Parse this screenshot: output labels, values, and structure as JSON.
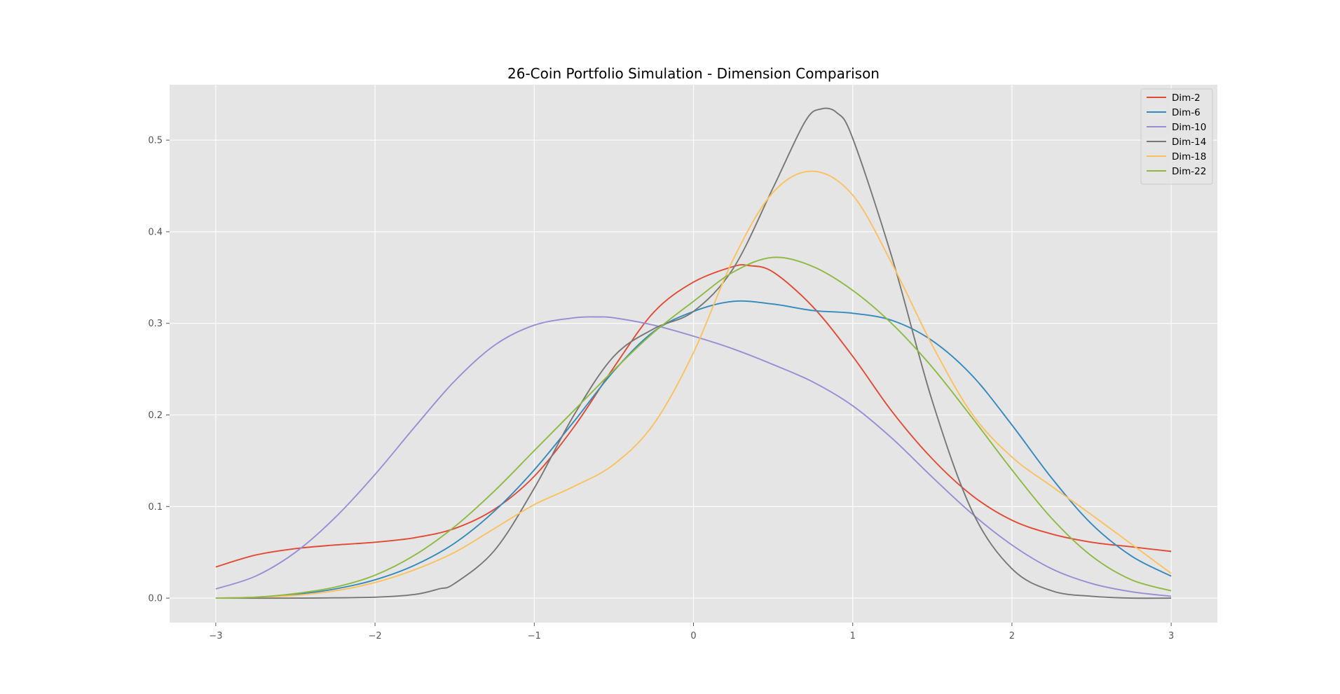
{
  "chart_data": {
    "type": "line",
    "title": "26-Coin Portfolio Simulation - Dimension Comparison",
    "xlabel": "",
    "ylabel": "",
    "xlim": [
      -3.29,
      3.29
    ],
    "ylim": [
      -0.0267,
      0.5605
    ],
    "x_ticks": [
      -3,
      -2,
      -1,
      0,
      1,
      2,
      3
    ],
    "x_tick_labels": [
      "−3",
      "−2",
      "−1",
      "0",
      "1",
      "2",
      "3"
    ],
    "y_ticks": [
      0.0,
      0.1,
      0.2,
      0.3,
      0.4,
      0.5
    ],
    "y_tick_labels": [
      "0.0",
      "0.1",
      "0.2",
      "0.3",
      "0.4",
      "0.5"
    ],
    "grid": true,
    "legend_position": "top-right",
    "series": [
      {
        "name": "Dim-2",
        "color": "#E24A33",
        "points": [
          [
            -3,
            0.034
          ],
          [
            -2.75,
            0.047
          ],
          [
            -2.5,
            0.054
          ],
          [
            -2.25,
            0.058
          ],
          [
            -2,
            0.061
          ],
          [
            -1.75,
            0.066
          ],
          [
            -1.5,
            0.076
          ],
          [
            -1.25,
            0.097
          ],
          [
            -1,
            0.133
          ],
          [
            -0.75,
            0.187
          ],
          [
            -0.5,
            0.252
          ],
          [
            -0.25,
            0.312
          ],
          [
            0,
            0.345
          ],
          [
            0.25,
            0.362
          ],
          [
            0.35,
            0.363
          ],
          [
            0.5,
            0.356
          ],
          [
            0.75,
            0.318
          ],
          [
            1,
            0.264
          ],
          [
            1.25,
            0.203
          ],
          [
            1.5,
            0.152
          ],
          [
            1.75,
            0.112
          ],
          [
            2,
            0.085
          ],
          [
            2.25,
            0.07
          ],
          [
            2.5,
            0.061
          ],
          [
            2.75,
            0.056
          ],
          [
            3,
            0.051
          ]
        ]
      },
      {
        "name": "Dim-6",
        "color": "#348ABD",
        "points": [
          [
            -3,
            0.0
          ],
          [
            -2.75,
            0.001
          ],
          [
            -2.5,
            0.004
          ],
          [
            -2.25,
            0.01
          ],
          [
            -2,
            0.02
          ],
          [
            -1.75,
            0.036
          ],
          [
            -1.5,
            0.06
          ],
          [
            -1.25,
            0.095
          ],
          [
            -1,
            0.14
          ],
          [
            -0.75,
            0.193
          ],
          [
            -0.5,
            0.248
          ],
          [
            -0.25,
            0.291
          ],
          [
            0,
            0.313
          ],
          [
            0.25,
            0.324
          ],
          [
            0.5,
            0.321
          ],
          [
            0.75,
            0.314
          ],
          [
            1,
            0.311
          ],
          [
            1.25,
            0.303
          ],
          [
            1.5,
            0.281
          ],
          [
            1.75,
            0.243
          ],
          [
            2,
            0.189
          ],
          [
            2.25,
            0.131
          ],
          [
            2.5,
            0.081
          ],
          [
            2.75,
            0.046
          ],
          [
            3,
            0.024
          ]
        ]
      },
      {
        "name": "Dim-10",
        "color": "#988ED5",
        "points": [
          [
            -3,
            0.01
          ],
          [
            -2.75,
            0.024
          ],
          [
            -2.5,
            0.05
          ],
          [
            -2.25,
            0.088
          ],
          [
            -2,
            0.135
          ],
          [
            -1.75,
            0.187
          ],
          [
            -1.5,
            0.237
          ],
          [
            -1.25,
            0.276
          ],
          [
            -1,
            0.298
          ],
          [
            -0.75,
            0.306
          ],
          [
            -0.6,
            0.307
          ],
          [
            -0.5,
            0.306
          ],
          [
            -0.25,
            0.298
          ],
          [
            0,
            0.286
          ],
          [
            0.25,
            0.272
          ],
          [
            0.5,
            0.255
          ],
          [
            0.75,
            0.236
          ],
          [
            1,
            0.21
          ],
          [
            1.25,
            0.174
          ],
          [
            1.5,
            0.132
          ],
          [
            1.75,
            0.092
          ],
          [
            2,
            0.058
          ],
          [
            2.25,
            0.032
          ],
          [
            2.5,
            0.016
          ],
          [
            2.75,
            0.007
          ],
          [
            3,
            0.002
          ]
        ]
      },
      {
        "name": "Dim-14",
        "color": "#777777",
        "points": [
          [
            -3,
            0.0
          ],
          [
            -2.5,
            0.0
          ],
          [
            -2,
            0.001
          ],
          [
            -1.75,
            0.004
          ],
          [
            -1.6,
            0.01
          ],
          [
            -1.5,
            0.016
          ],
          [
            -1.25,
            0.052
          ],
          [
            -1,
            0.12
          ],
          [
            -0.75,
            0.2
          ],
          [
            -0.5,
            0.264
          ],
          [
            -0.25,
            0.294
          ],
          [
            0,
            0.313
          ],
          [
            0.25,
            0.36
          ],
          [
            0.5,
            0.448
          ],
          [
            0.7,
            0.52
          ],
          [
            0.8,
            0.534
          ],
          [
            0.9,
            0.53
          ],
          [
            1,
            0.502
          ],
          [
            1.25,
            0.37
          ],
          [
            1.5,
            0.215
          ],
          [
            1.75,
            0.095
          ],
          [
            2,
            0.032
          ],
          [
            2.25,
            0.008
          ],
          [
            2.5,
            0.002
          ],
          [
            2.75,
            0.0
          ],
          [
            3,
            0.0
          ]
        ]
      },
      {
        "name": "Dim-18",
        "color": "#FBC15E",
        "points": [
          [
            -3,
            0.0
          ],
          [
            -2.75,
            0.001
          ],
          [
            -2.5,
            0.003
          ],
          [
            -2.25,
            0.008
          ],
          [
            -2,
            0.017
          ],
          [
            -1.75,
            0.031
          ],
          [
            -1.5,
            0.05
          ],
          [
            -1.25,
            0.076
          ],
          [
            -1,
            0.102
          ],
          [
            -0.75,
            0.122
          ],
          [
            -0.5,
            0.146
          ],
          [
            -0.25,
            0.19
          ],
          [
            0,
            0.268
          ],
          [
            0.25,
            0.37
          ],
          [
            0.5,
            0.443
          ],
          [
            0.75,
            0.466
          ],
          [
            1,
            0.44
          ],
          [
            1.25,
            0.364
          ],
          [
            1.5,
            0.276
          ],
          [
            1.75,
            0.201
          ],
          [
            2,
            0.154
          ],
          [
            2.25,
            0.122
          ],
          [
            2.5,
            0.091
          ],
          [
            2.75,
            0.059
          ],
          [
            3,
            0.027
          ]
        ]
      },
      {
        "name": "Dim-22",
        "color": "#8EBA42",
        "points": [
          [
            -3,
            0.0
          ],
          [
            -2.75,
            0.001
          ],
          [
            -2.5,
            0.005
          ],
          [
            -2.25,
            0.012
          ],
          [
            -2,
            0.025
          ],
          [
            -1.75,
            0.047
          ],
          [
            -1.5,
            0.078
          ],
          [
            -1.25,
            0.117
          ],
          [
            -1,
            0.161
          ],
          [
            -0.75,
            0.205
          ],
          [
            -0.5,
            0.249
          ],
          [
            -0.25,
            0.29
          ],
          [
            0,
            0.324
          ],
          [
            0.25,
            0.356
          ],
          [
            0.5,
            0.372
          ],
          [
            0.75,
            0.362
          ],
          [
            1,
            0.336
          ],
          [
            1.25,
            0.299
          ],
          [
            1.5,
            0.252
          ],
          [
            1.75,
            0.197
          ],
          [
            2,
            0.14
          ],
          [
            2.25,
            0.087
          ],
          [
            2.5,
            0.046
          ],
          [
            2.75,
            0.02
          ],
          [
            3,
            0.008
          ]
        ]
      }
    ]
  }
}
